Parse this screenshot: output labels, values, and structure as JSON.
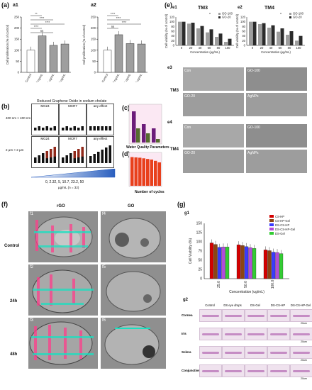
{
  "panel_a": {
    "label": "(a)",
    "a1": {
      "label": "a1",
      "ylabel": "Cell proliferation (% of control)",
      "yticks": [
        "0",
        "50",
        "100",
        "150",
        "200",
        "250"
      ],
      "categories": [
        "Control",
        "EGF 10 ng/mL",
        "GNPs 0.01 ug/mL",
        "GNPs 0.005 ug/mL"
      ],
      "sig": [
        "**",
        "****",
        "****",
        "****",
        "ns"
      ]
    },
    "a2": {
      "label": "a2",
      "ylabel": "Cell proliferation (% of control)",
      "yticks": [
        "0",
        "50",
        "100",
        "150",
        "200",
        "250"
      ],
      "categories": [
        "Control",
        "EGF 10 ng/mL",
        "GNPs 0.01 ug/mL",
        "GNPs 0.005 ug/mL"
      ],
      "sig": [
        "****",
        "****",
        "****",
        "ns"
      ]
    }
  },
  "panel_b": {
    "label": "(b)",
    "title": "Reduced Graphene Oxide in sodium cholate",
    "row1": "400 nm × 400 nm",
    "row2": "2 μm × 2 μm",
    "cols": [
      "MG24",
      "MCR7",
      "any effect"
    ],
    "scale": "0, 2.32, 5, 10.7, 23.2, 50",
    "unit": "μg/mL (n = 32)"
  },
  "panel_c": {
    "label": "(c)",
    "caption": "Water Quality Parameters"
  },
  "panel_d": {
    "label": "(d)",
    "caption": "Number of cycles"
  },
  "panel_e": {
    "label": "(e)",
    "e1": {
      "label": "e1",
      "title": "TM3"
    },
    "e2": {
      "label": "e2",
      "title": "TM4"
    },
    "legend": [
      "GO-100",
      "GO-20"
    ],
    "ylabel": "Cell viability (% of control)",
    "xlabel": "Concentration (μg/mL)",
    "xticks": [
      "0",
      "20",
      "40",
      "60",
      "80",
      "100"
    ],
    "yticks": [
      "0",
      "20",
      "40",
      "60",
      "80",
      "100",
      "120"
    ],
    "star": "*",
    "e3": {
      "label": "e3",
      "row": "TM3",
      "cells": [
        "Con",
        "GO-100",
        "GO-20",
        "AgNPs"
      ]
    },
    "e4": {
      "label": "e4",
      "row": "TM4",
      "cells": [
        "Con",
        "GO-100",
        "GO-20",
        "AgNPs"
      ]
    }
  },
  "panel_f": {
    "label": "(f)",
    "col1": "rGO",
    "col2": "GO",
    "rows": [
      "Control",
      "24h",
      "48h"
    ],
    "tags": [
      "f1",
      "f2",
      "f3",
      "f4",
      "f5",
      "f6"
    ],
    "letters": [
      "N",
      "N",
      "N",
      "N",
      "N",
      "N",
      "M",
      "M",
      "M"
    ]
  },
  "panel_g": {
    "label": "(g)",
    "g1": "g1",
    "ylabel": "Cell Viability (%)",
    "xlabel": "Concentration (ug/mL)",
    "yticks": [
      "0",
      "25",
      "50",
      "75",
      "100",
      "125",
      "150"
    ],
    "xticks": [
      "25.0",
      "50.0",
      "100.0"
    ],
    "legend": [
      "CS-HP",
      "CS-HP-Gel",
      "DS-CS-HP",
      "DS-CS-HP-Gel",
      "DS-Gel"
    ],
    "g2": "g2",
    "g2_cols": [
      "Control",
      "DS eye drops",
      "DS-Gel",
      "DS-CS-HP",
      "DS-CS-HP-Gel"
    ],
    "g2_rows": [
      "Cornea",
      "Iris",
      "Sclera",
      "Conjunctive"
    ],
    "scale_bar": "20um"
  },
  "colors": {
    "bar_gray": "#9e9e9e",
    "bar_white": "#ffffff",
    "g_red": "#d40000",
    "g_brown": "#8b4513",
    "g_blue": "#3b3bff",
    "g_purple": "#b44bd9",
    "g_green": "#33cc33",
    "purple": "#6c1c7a",
    "olive": "#556b2f",
    "orange": "#e8401c"
  },
  "chart_data": [
    {
      "type": "bar",
      "id": "a1",
      "categories": [
        "Control",
        "EGF 10 ng/mL",
        "GNPs 0.01 ug/mL",
        "GNPs 0.005 ug/mL"
      ],
      "values": [
        100,
        165,
        122,
        128
      ],
      "ylabel": "Cell proliferation (% of control)",
      "ylim": [
        0,
        250
      ]
    },
    {
      "type": "bar",
      "id": "a2",
      "categories": [
        "Control",
        "EGF 10 ng/mL",
        "GNPs 0.01 ug/mL",
        "GNPs 0.005 ug/mL"
      ],
      "values": [
        100,
        170,
        130,
        128
      ],
      "ylabel": "Cell proliferation (% of control)",
      "ylim": [
        0,
        250
      ]
    },
    {
      "type": "bar",
      "id": "e1",
      "title": "TM3",
      "categories": [
        "0",
        "20",
        "40",
        "60",
        "80",
        "100"
      ],
      "series": [
        {
          "name": "GO-100",
          "values": [
            100,
            92,
            72,
            55,
            36,
            15
          ]
        },
        {
          "name": "GO-20",
          "values": [
            100,
            96,
            82,
            68,
            50,
            28
          ]
        }
      ],
      "xlabel": "Concentration (μg/mL)",
      "ylabel": "Cell viability (% of control)",
      "ylim": [
        0,
        120
      ]
    },
    {
      "type": "bar",
      "id": "e2",
      "title": "TM4",
      "categories": [
        "0",
        "20",
        "40",
        "60",
        "80",
        "100"
      ],
      "series": [
        {
          "name": "GO-100",
          "values": [
            100,
            90,
            75,
            58,
            45,
            20
          ]
        },
        {
          "name": "GO-20",
          "values": [
            100,
            94,
            85,
            72,
            60,
            40
          ]
        }
      ],
      "xlabel": "Concentration (μg/mL)",
      "ylabel": "Cell viability (% of control)",
      "ylim": [
        0,
        120
      ]
    },
    {
      "type": "bar",
      "id": "c",
      "categories": [
        "1",
        "2",
        "3"
      ],
      "series": [
        {
          "name": "s1",
          "values": [
            88,
            52,
            40
          ]
        },
        {
          "name": "s2",
          "values": [
            40,
            26,
            10
          ]
        }
      ],
      "xlabel": "Water Quality Parameters"
    },
    {
      "type": "bar",
      "id": "d",
      "categories": [
        "1",
        "2",
        "3",
        "4",
        "5",
        "6",
        "7",
        "8"
      ],
      "values": [
        92,
        91,
        90,
        88,
        86,
        84,
        80,
        75
      ],
      "xlabel": "Number of cycles",
      "ylim": [
        0,
        100
      ]
    },
    {
      "type": "bar",
      "id": "g1",
      "categories": [
        "25.0",
        "50.0",
        "100.0"
      ],
      "series": [
        {
          "name": "CS-HP",
          "values": [
            97,
            92,
            78
          ]
        },
        {
          "name": "CS-HP-Gel",
          "values": [
            93,
            90,
            76
          ]
        },
        {
          "name": "DS-CS-HP",
          "values": [
            85,
            87,
            72
          ]
        },
        {
          "name": "DS-CS-HP-Gel",
          "values": [
            86,
            84,
            71
          ]
        },
        {
          "name": "DS-Gel",
          "values": [
            86,
            82,
            68
          ]
        }
      ],
      "xlabel": "Concentration (ug/mL)",
      "ylabel": "Cell Viability (%)",
      "ylim": [
        0,
        150
      ]
    }
  ]
}
